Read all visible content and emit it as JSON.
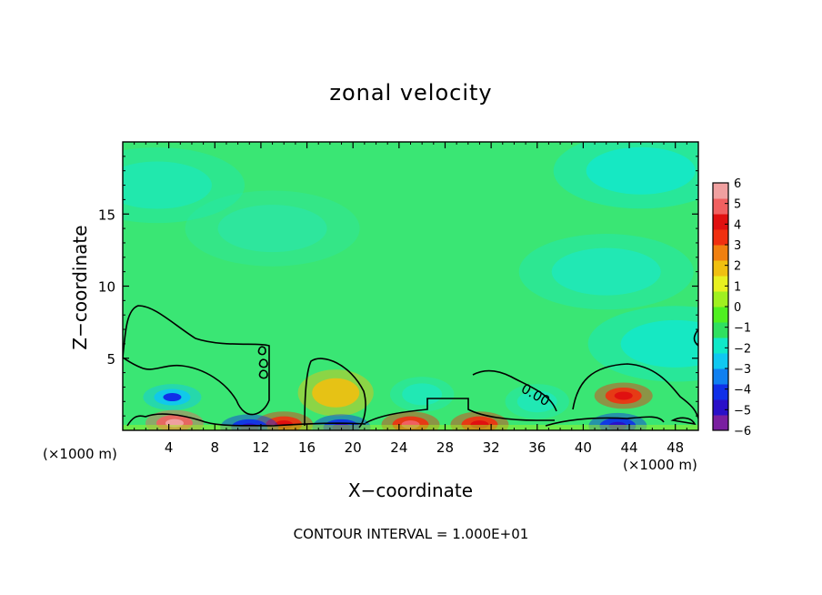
{
  "chart_data": {
    "type": "heatmap",
    "title": "zonal velocity",
    "xlabel": "X−coordinate",
    "ylabel": "Z−coordinate",
    "x_unit_label": "(×1000 m)",
    "footer": "CONTOUR INTERVAL = 1.000E+01",
    "xlim": [
      0,
      50
    ],
    "ylim": [
      0,
      20
    ],
    "x_ticks": [
      4,
      8,
      12,
      16,
      20,
      24,
      28,
      32,
      36,
      40,
      44,
      48
    ],
    "y_ticks": [
      5,
      10,
      15
    ],
    "colorbar": {
      "range": [
        -6,
        6
      ],
      "ticks": [
        6,
        5,
        4,
        3,
        2,
        1,
        0,
        -1,
        -2,
        -3,
        -4,
        -5,
        -6
      ],
      "tick_labels": [
        "6",
        "5",
        "4",
        "3",
        "2",
        "1",
        "0",
        "−1",
        "−2",
        "−3",
        "−4",
        "−5",
        "−6"
      ],
      "colors": [
        "#7a1fa0",
        "#2a10c8",
        "#1030e8",
        "#1080f0",
        "#10c8f0",
        "#10e8c8",
        "#30e060",
        "#50f020",
        "#a0f020",
        "#e8f020",
        "#f0c010",
        "#f08010",
        "#f03010",
        "#e01010",
        "#f06060",
        "#f0a0a0"
      ]
    },
    "contour_label": "0.00",
    "features": [
      {
        "x": 4.3,
        "z": 2.3,
        "value": -3
      },
      {
        "x": 43.5,
        "z": 2.4,
        "value": 3
      },
      {
        "x": 18.5,
        "z": 2.6,
        "value": 1.5
      },
      {
        "x": 4.5,
        "z": 0.5,
        "value": 5
      },
      {
        "x": 25,
        "z": 0.4,
        "value": 3.5
      },
      {
        "x": 31,
        "z": 0.4,
        "value": 3
      },
      {
        "x": 14,
        "z": 0.4,
        "value": 3
      },
      {
        "x": 11,
        "z": 0.2,
        "value": -4
      },
      {
        "x": 19,
        "z": 0.2,
        "value": -4
      },
      {
        "x": 43,
        "z": 0.3,
        "value": -4
      },
      {
        "x": 26,
        "z": 2.5,
        "value": -1
      },
      {
        "x": 36,
        "z": 2.0,
        "value": -1
      },
      {
        "x": 13,
        "z": 14,
        "value": -0.8
      },
      {
        "x": 42,
        "z": 11,
        "value": -1
      },
      {
        "x": 48,
        "z": 6,
        "value": -1.5
      },
      {
        "x": 45,
        "z": 18,
        "value": -1.5
      },
      {
        "x": 3,
        "z": 17,
        "value": -1.2
      }
    ]
  }
}
